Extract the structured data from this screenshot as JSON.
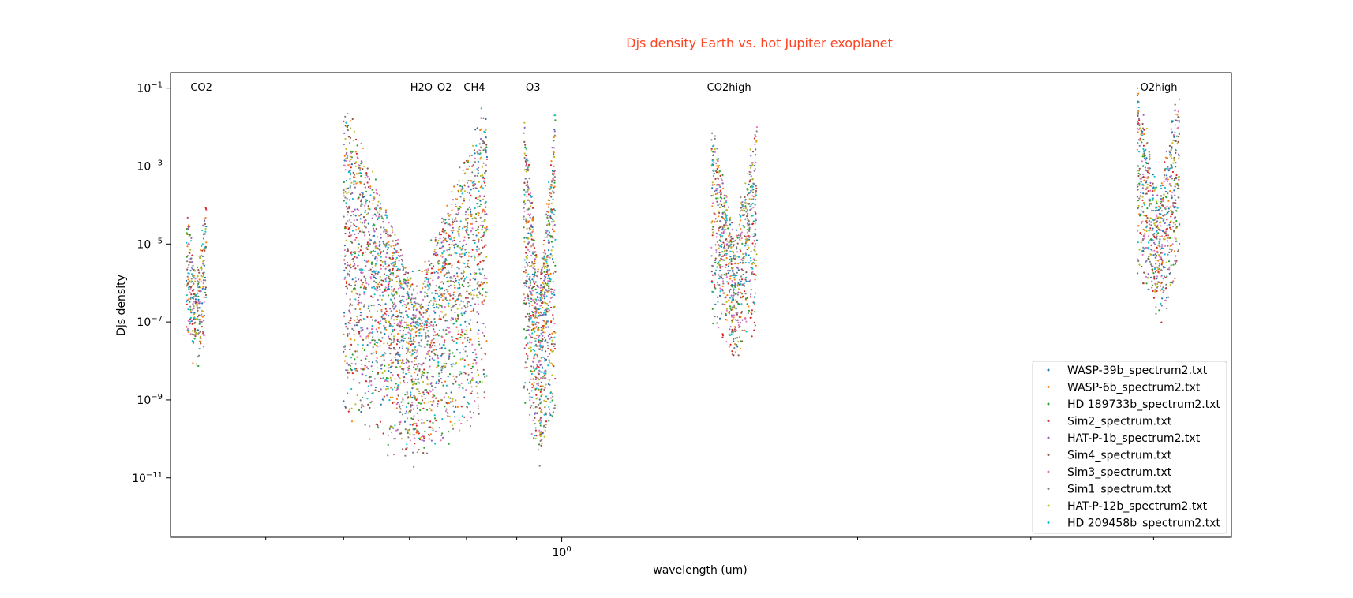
{
  "chart_data": {
    "type": "scatter",
    "title": "Djs density Earth vs. hot Jupiter exoplanet",
    "title_color": "#ff4422",
    "xlabel": "wavelength (um)",
    "ylabel": "Djs density",
    "x_scale": "log",
    "y_scale": "log",
    "xlim": [
      0.4,
      4.8
    ],
    "ylim": [
      3e-13,
      0.25
    ],
    "x_tick_labels": [
      {
        "value": 1.0,
        "mantissa": "10",
        "exponent": "0"
      }
    ],
    "x_minor_ticks": [
      0.5,
      0.6,
      0.7,
      0.8,
      0.9,
      2.0,
      3.0,
      4.0
    ],
    "y_tick_labels": [
      {
        "value": 0.1,
        "mantissa": "10",
        "exponent": "−1"
      },
      {
        "value": 0.001,
        "mantissa": "10",
        "exponent": "−3"
      },
      {
        "value": 1e-05,
        "mantissa": "10",
        "exponent": "−5"
      },
      {
        "value": 1e-07,
        "mantissa": "10",
        "exponent": "−7"
      },
      {
        "value": 1e-09,
        "mantissa": "10",
        "exponent": "−9"
      },
      {
        "value": 1e-11,
        "mantissa": "10",
        "exponent": "−11"
      }
    ],
    "band_labels": [
      {
        "text": "CO2",
        "x": 0.43
      },
      {
        "text": "H2O",
        "x": 0.72
      },
      {
        "text": "O2",
        "x": 0.76
      },
      {
        "text": "CH4",
        "x": 0.815
      },
      {
        "text": "O3",
        "x": 0.935
      },
      {
        "text": "CO2high",
        "x": 1.48
      },
      {
        "text": "O2high",
        "x": 4.05
      }
    ],
    "legend_position": "lower right",
    "series": [
      {
        "name": "WASP-39b_spectrum2.txt",
        "color": "#1f77b4"
      },
      {
        "name": "WASP-6b_spectrum2.txt",
        "color": "#ff7f0e"
      },
      {
        "name": "HD 189733b_spectrum2.txt",
        "color": "#2ca02c"
      },
      {
        "name": "Sim2_spectrum.txt",
        "color": "#d62728"
      },
      {
        "name": "HAT-P-1b_spectrum2.txt",
        "color": "#9467bd"
      },
      {
        "name": "Sim4_spectrum.txt",
        "color": "#8c564b"
      },
      {
        "name": "Sim3_spectrum.txt",
        "color": "#e377c2"
      },
      {
        "name": "Sim1_spectrum.txt",
        "color": "#7f7f7f"
      },
      {
        "name": "HAT-P-12b_spectrum2.txt",
        "color": "#bcbd22"
      },
      {
        "name": "HD 209458b_spectrum2.txt",
        "color": "#17becf"
      }
    ],
    "bands": [
      {
        "label": "CO2",
        "x_range": [
          0.415,
          0.435
        ],
        "y_log_range": [
          -8.7,
          -4.0
        ],
        "points_per_series": 30
      },
      {
        "label": "H2O-O2-CH4",
        "x_range": [
          0.6,
          0.84
        ],
        "y_log_range": [
          -12.0,
          -1.5
        ],
        "points_per_series": 260
      },
      {
        "label": "O3",
        "x_range": [
          0.915,
          0.985
        ],
        "y_log_range": [
          -11.9,
          -1.7
        ],
        "points_per_series": 90
      },
      {
        "label": "CO2high",
        "x_range": [
          1.42,
          1.58
        ],
        "y_log_range": [
          -8.7,
          -2.0
        ],
        "points_per_series": 80
      },
      {
        "label": "O2high",
        "x_range": [
          3.85,
          4.25
        ],
        "y_log_range": [
          -7.7,
          -1.0
        ],
        "points_per_series": 70
      }
    ]
  }
}
